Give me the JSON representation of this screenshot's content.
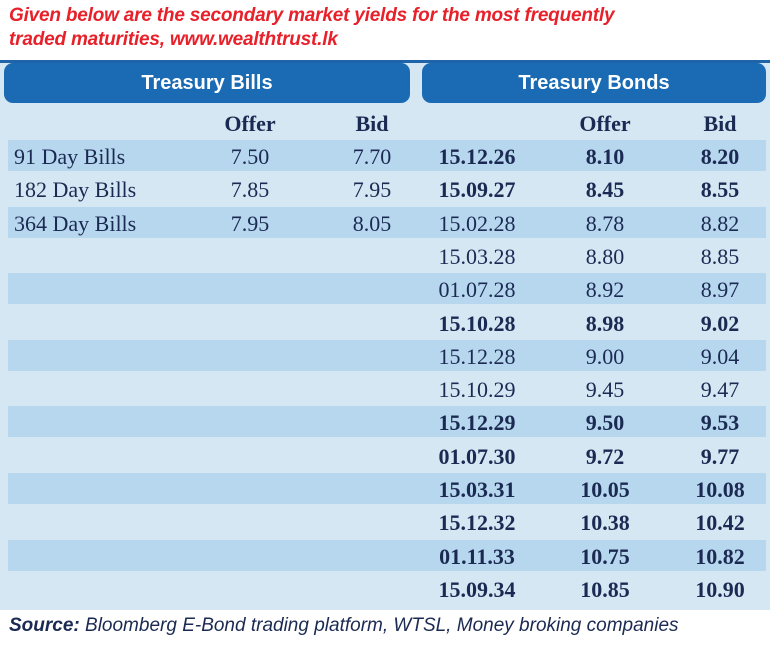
{
  "caption": {
    "line1": "Given below are the secondary market yields for the most frequently",
    "line2": "traded maturities, www.wealthtrust.lk"
  },
  "bills": {
    "title": "Treasury Bills",
    "offer_header": "Offer",
    "bid_header": "Bid",
    "rows": [
      {
        "name": "91 Day Bills",
        "offer": "7.50",
        "bid": "7.70"
      },
      {
        "name": "182 Day Bills",
        "offer": "7.85",
        "bid": "7.95"
      },
      {
        "name": "364 Day Bills",
        "offer": "7.95",
        "bid": "8.05"
      }
    ]
  },
  "bonds": {
    "title": "Treasury Bonds",
    "offer_header": "Offer",
    "bid_header": "Bid",
    "rows": [
      {
        "maturity": "15.12.26",
        "offer": "8.10",
        "bid": "8.20",
        "bold": true
      },
      {
        "maturity": "15.09.27",
        "offer": "8.45",
        "bid": "8.55",
        "bold": true
      },
      {
        "maturity": "15.02.28",
        "offer": "8.78",
        "bid": "8.82",
        "bold": false
      },
      {
        "maturity": "15.03.28",
        "offer": "8.80",
        "bid": "8.85",
        "bold": false
      },
      {
        "maturity": "01.07.28",
        "offer": "8.92",
        "bid": "8.97",
        "bold": false
      },
      {
        "maturity": "15.10.28",
        "offer": "8.98",
        "bid": "9.02",
        "bold": true
      },
      {
        "maturity": "15.12.28",
        "offer": "9.00",
        "bid": "9.04",
        "bold": false
      },
      {
        "maturity": "15.10.29",
        "offer": "9.45",
        "bid": "9.47",
        "bold": false
      },
      {
        "maturity": "15.12.29",
        "offer": "9.50",
        "bid": "9.53",
        "bold": true
      },
      {
        "maturity": "01.07.30",
        "offer": "9.72",
        "bid": "9.77",
        "bold": true
      },
      {
        "maturity": "15.03.31",
        "offer": "10.05",
        "bid": "10.08",
        "bold": true
      },
      {
        "maturity": "15.12.32",
        "offer": "10.38",
        "bid": "10.42",
        "bold": true
      },
      {
        "maturity": "01.11.33",
        "offer": "10.75",
        "bid": "10.82",
        "bold": true
      },
      {
        "maturity": "15.09.34",
        "offer": "10.85",
        "bid": "10.90",
        "bold": true
      }
    ]
  },
  "source": {
    "label": "Source:",
    "text": " Bloomberg E-Bond trading platform, WTSL, Money broking companies"
  },
  "colors": {
    "caption": "#e8202a",
    "header": "#1a6ab4",
    "panel": "#d6e7f4",
    "stripe": "#b7d7ef",
    "text": "#1b2a52"
  }
}
